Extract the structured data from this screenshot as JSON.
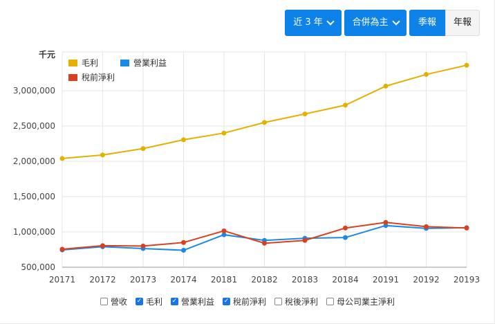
{
  "controls": {
    "range_label": "近 3 年",
    "scope_label": "合併為主",
    "quarterly_label": "季報",
    "annual_label": "年報"
  },
  "chart_data": {
    "type": "line",
    "unit_label": "千元",
    "categories": [
      "20171",
      "20172",
      "20173",
      "20174",
      "20181",
      "20182",
      "20183",
      "20184",
      "20191",
      "20192",
      "20193"
    ],
    "y_ticks": [
      "500,000",
      "1,000,000",
      "1,500,000",
      "2,000,000",
      "2,500,000",
      "3,000,000"
    ],
    "ylim": [
      500000,
      3400000
    ],
    "series": [
      {
        "name": "毛利",
        "color": "#e6b000",
        "values": [
          2040000,
          2090000,
          2180000,
          2305000,
          2400000,
          2550000,
          2670000,
          2795000,
          3065000,
          3230000,
          3360000
        ]
      },
      {
        "name": "營業利益",
        "color": "#1a8ae6",
        "values": [
          745000,
          790000,
          765000,
          740000,
          960000,
          880000,
          910000,
          920000,
          1090000,
          1050000,
          1060000
        ]
      },
      {
        "name": "稅前淨利",
        "color": "#d9411e",
        "values": [
          755000,
          805000,
          800000,
          850000,
          1015000,
          840000,
          880000,
          1055000,
          1135000,
          1075000,
          1055000
        ]
      }
    ]
  },
  "filters": [
    {
      "label": "營收",
      "checked": false
    },
    {
      "label": "毛利",
      "checked": true
    },
    {
      "label": "營業利益",
      "checked": true
    },
    {
      "label": "稅前淨利",
      "checked": true
    },
    {
      "label": "稅後淨利",
      "checked": false
    },
    {
      "label": "母公司業主淨利",
      "checked": false
    }
  ]
}
